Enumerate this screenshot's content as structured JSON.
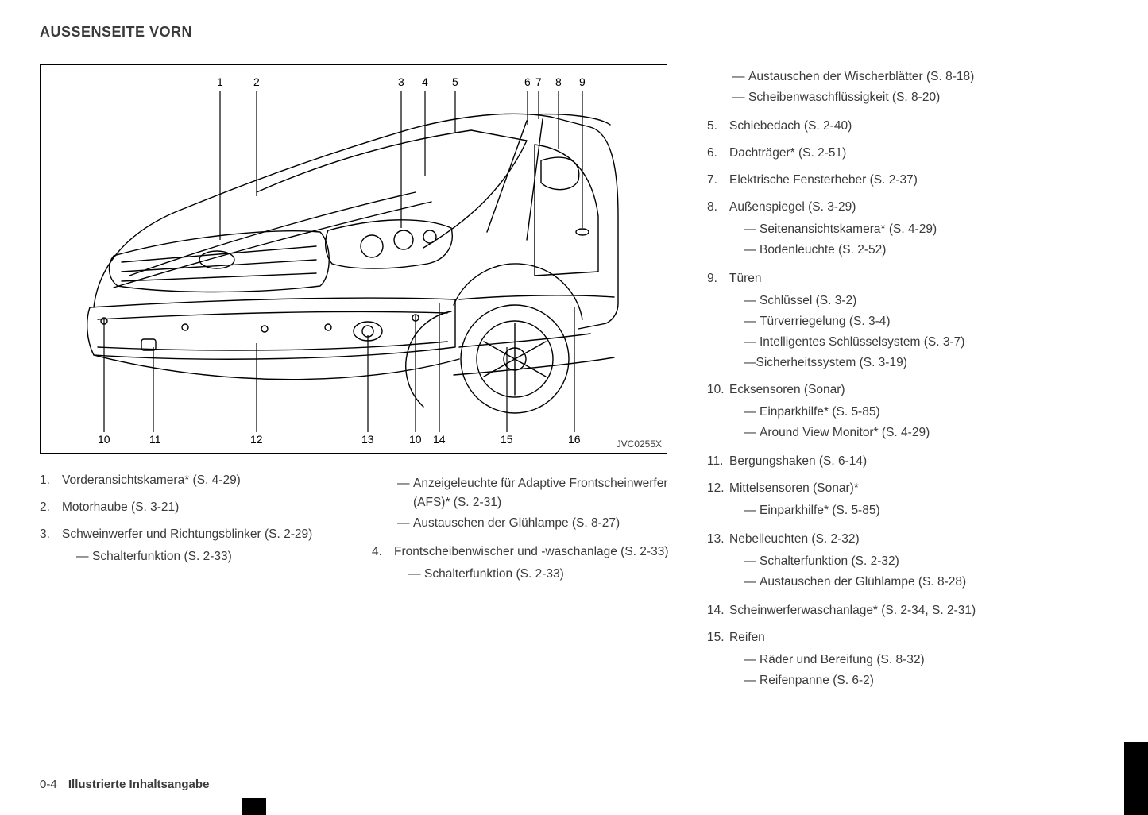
{
  "title": "AUSSENSEITE VORN",
  "diagram_code": "JVC0255X",
  "footer": {
    "page": "0-4",
    "section": "Illustrierte Inhaltsangabe"
  },
  "diagram": {
    "top_numbers": [
      "1",
      "2",
      "3",
      "4",
      "5",
      "6",
      "7",
      "8",
      "9"
    ],
    "bottom_numbers": [
      "10",
      "11",
      "12",
      "13",
      "10",
      "14",
      "15",
      "16"
    ]
  },
  "left": [
    {
      "n": "1.",
      "text": "Vorderansichtskamera* (S. 4-29)"
    },
    {
      "n": "2.",
      "text": "Motorhaube (S. 3-21)"
    },
    {
      "n": "3.",
      "text": "Schweinwerfer und Richtungsblinker (S. 2-29)",
      "sub": [
        "Schalterfunktion (S. 2-33)"
      ]
    }
  ],
  "mid": [
    {
      "sub_only": [
        "Anzeigeleuchte für Adaptive Front­scheinwerfer (AFS)* (S. 2-31)",
        "Austauschen der Glühlampe (S. 8-27)"
      ]
    },
    {
      "n": "4.",
      "text": "Frontscheibenwischer und -waschanlage (S. 2-33)",
      "sub": [
        "Schalterfunktion (S. 2-33)"
      ]
    }
  ],
  "right": [
    {
      "sub_only": [
        "Austauschen der Wischerblätter (S. 8-18)",
        "Scheibenwaschflüssigkeit (S. 8-20)"
      ]
    },
    {
      "n": "5.",
      "text": "Schiebedach (S. 2-40)"
    },
    {
      "n": "6.",
      "text": "Dachträger* (S. 2-51)"
    },
    {
      "n": "7.",
      "text": "Elektrische Fensterheber (S. 2-37)"
    },
    {
      "n": "8.",
      "text": "Außenspiegel (S. 3-29)",
      "sub": [
        "Seitenansichtskamera* (S. 4-29)",
        "Bodenleuchte (S. 2-52)"
      ]
    },
    {
      "n": "9.",
      "text": "Türen",
      "sub": [
        "Schlüssel (S. 3-2)",
        "Türverriegelung (S. 3-4)",
        "Intelligentes Schlüsselsystem (S. 3-7)"
      ],
      "sub_tight": "—Sicherheitssystem (S. 3-19)"
    },
    {
      "n": "10.",
      "text": "Ecksensoren (Sonar)",
      "sub": [
        "Einparkhilfe* (S. 5-85)",
        "Around View Monitor* (S. 4-29)"
      ]
    },
    {
      "n": "11.",
      "text": "Bergungshaken (S. 6-14)"
    },
    {
      "n": "12.",
      "text": "Mittelsensoren (Sonar)*",
      "sub": [
        "Einparkhilfe* (S. 5-85)"
      ]
    },
    {
      "n": "13.",
      "text": "Nebelleuchten (S. 2-32)",
      "sub": [
        "Schalterfunktion (S. 2-32)",
        "Austauschen der Glühlampe (S. 8-28)"
      ]
    },
    {
      "n": "14.",
      "text": "Scheinwerferwaschanlage* (S. 2-34, S. 2-31)"
    },
    {
      "n": "15.",
      "text": "Reifen",
      "sub": [
        "Räder und Bereifung (S. 8-32)",
        "Reifenpanne (S. 6-2)"
      ]
    }
  ]
}
